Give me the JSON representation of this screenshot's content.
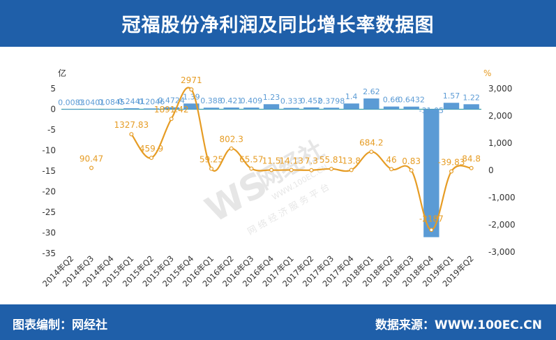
{
  "header": {
    "title": "冠福股份净利润及同比增长率数据图"
  },
  "footer": {
    "left": "图表编制：网经社",
    "right": "数据来源：WWW.100EC.CN"
  },
  "watermark": {
    "brand": "网经社",
    "subtitle": "网 络 经 济 服 务 平 台",
    "url": "WWW.100EC.CN"
  },
  "colors": {
    "header_bg": "#1f5fa9",
    "bar": "#5b9bd5",
    "line": "#e69c24",
    "bar_label": "#5b9bd5",
    "line_label": "#e69c24"
  },
  "chart_data": {
    "type": "bar+line",
    "title": "",
    "y_left": {
      "unit_label": "亿",
      "min": -35,
      "max": 5,
      "ticks": [
        5,
        0,
        -5,
        -10,
        -15,
        -20,
        -25,
        -30,
        -35
      ]
    },
    "y_right": {
      "unit_label": "%",
      "min": -3000,
      "max": 3000,
      "ticks": [
        "3,000",
        "2,000",
        "1,000",
        "0",
        "-1,000",
        "-2,000",
        "-3,000"
      ],
      "tick_values": [
        3000,
        2000,
        1000,
        0,
        -1000,
        -2000,
        -3000
      ]
    },
    "categories": [
      "2014年Q2",
      "2014年Q3",
      "2014年Q4",
      "2015年Q1",
      "2015年Q2",
      "2015年Q3",
      "2015年Q4",
      "2016年Q1",
      "2016年Q2",
      "2016年Q3",
      "2016年Q4",
      "2017年Q1",
      "2017年Q2",
      "2017年Q3",
      "2017年Q4",
      "2018年Q1",
      "2018年Q2",
      "2018年Q3",
      "2018年Q4",
      "2019年Q1",
      "2019年Q2"
    ],
    "series": [
      {
        "kind": "bar",
        "axis": "left",
        "values": [
          0.0083,
          0.0401,
          0.0845,
          0.2441,
          0.2046,
          0.4724,
          1.39,
          0.388,
          0.421,
          0.409,
          1.23,
          0.333,
          0.452,
          0.3798,
          1.4,
          2.62,
          0.66,
          0.6432,
          -31.05,
          1.57,
          1.22
        ],
        "labels": [
          "0.0083",
          "0.0401",
          "0.0845",
          "0.2441",
          "0.2046",
          "0.4724",
          "1.39",
          "0.388",
          "0.421",
          "0.409",
          "1.23",
          "0.333",
          "0.452",
          "0.3798",
          "1.4",
          "2.62",
          "0.66",
          "0.6432",
          "-31.05",
          "1.57",
          "1.22"
        ]
      },
      {
        "kind": "line",
        "axis": "right",
        "values": [
          null,
          90.47,
          null,
          1327.83,
          459.9,
          1891.42,
          2971,
          59.25,
          802.3,
          65.57,
          11.5,
          14.13,
          7.3,
          55.81,
          13.8,
          684.2,
          46,
          0.83,
          -2187,
          -39.83,
          84.8
        ],
        "labels": [
          "",
          "90.47",
          "",
          "1327.83",
          "459.9",
          "1891.42",
          "2971",
          "59.25",
          "802.3",
          "65.57",
          "11.5",
          "14.13",
          "7.3",
          "55.81",
          "13.8",
          "684.2",
          "46",
          "0.83",
          "-2187",
          "-39.83",
          "84.8"
        ]
      }
    ]
  }
}
